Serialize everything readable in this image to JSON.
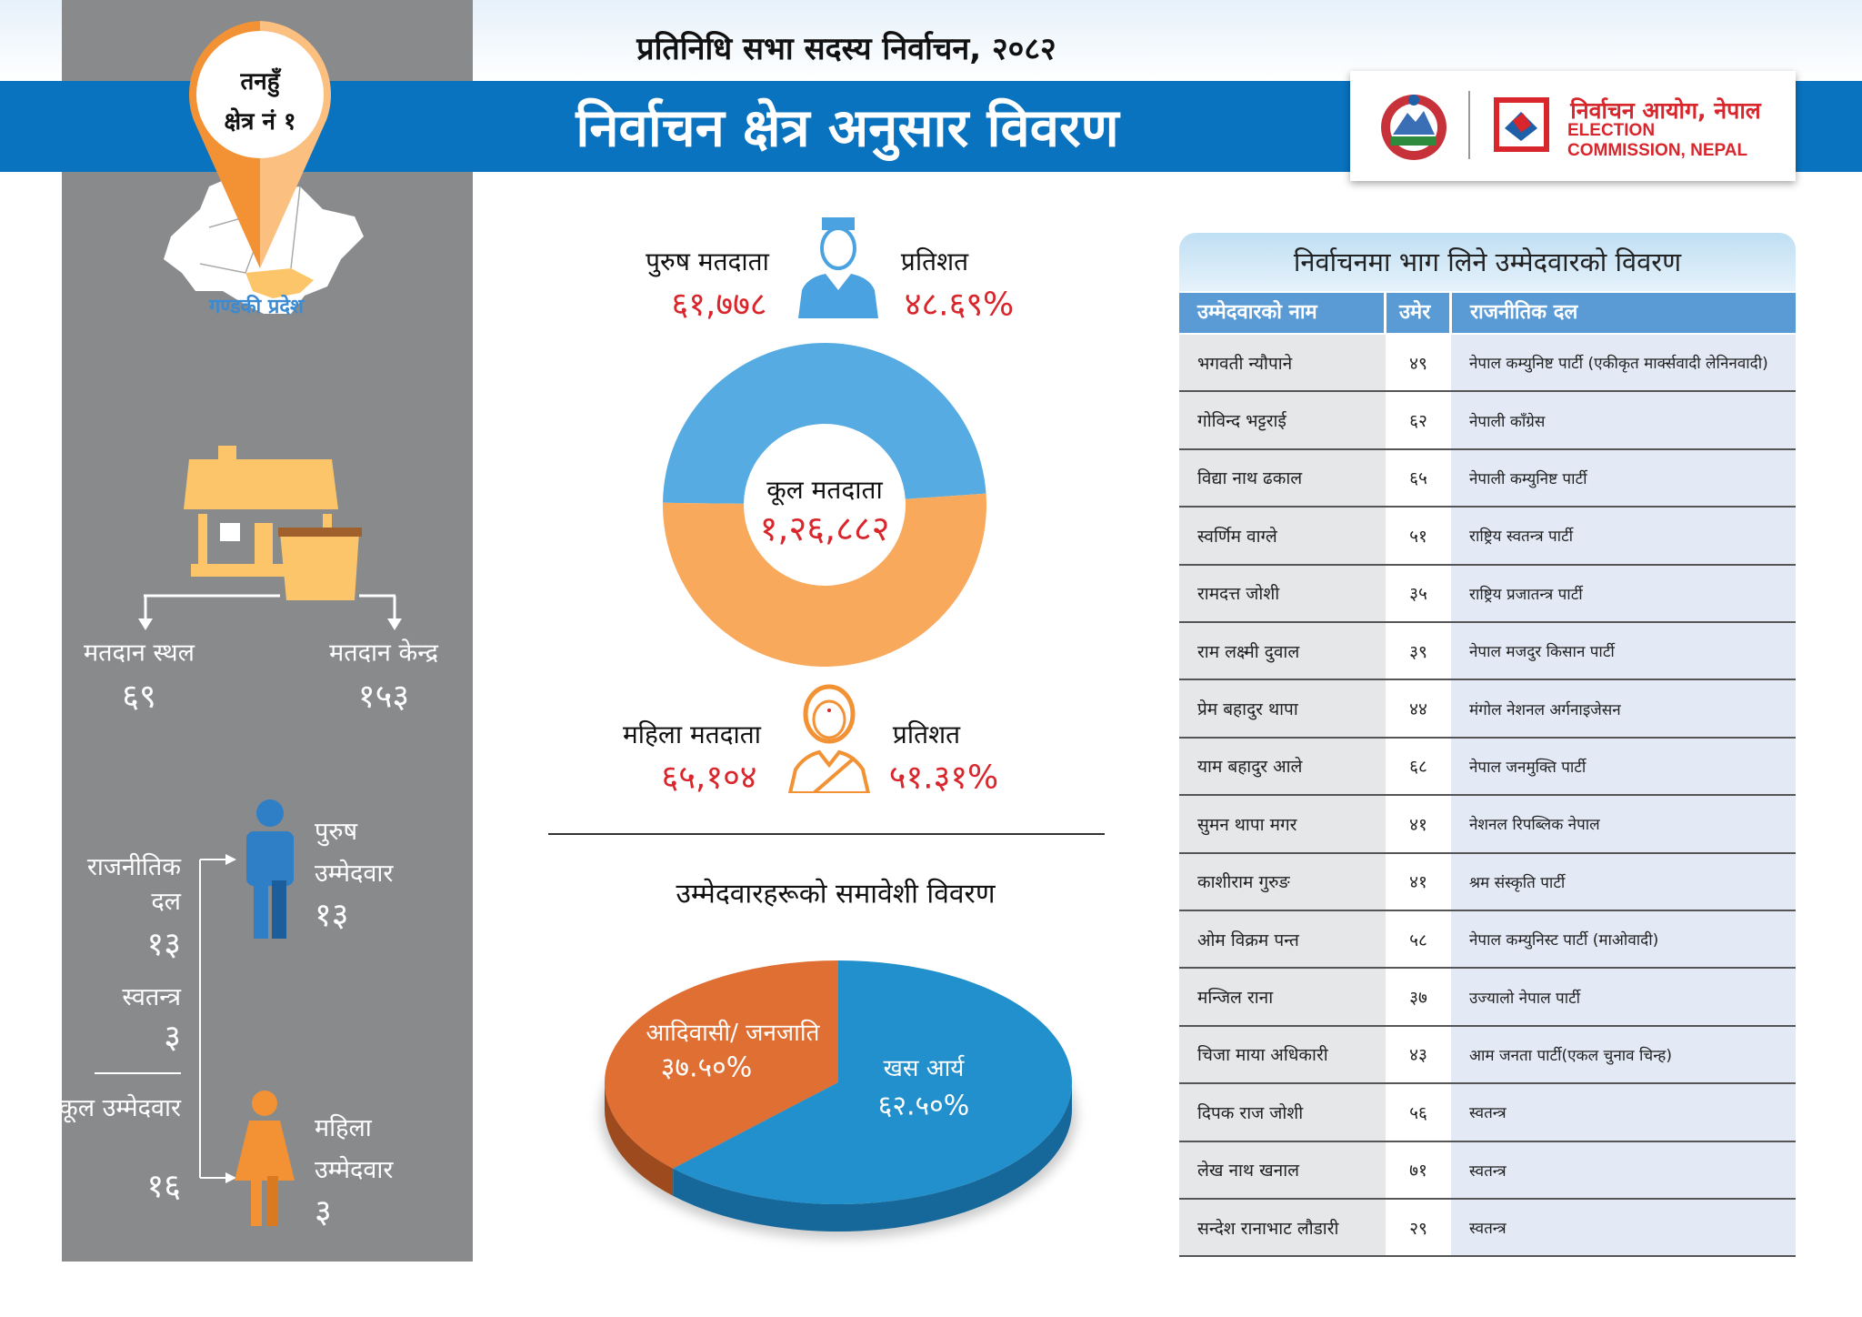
{
  "header": {
    "subtitle": "प्रतिनिधि सभा सदस्य निर्वाचन, २०८२",
    "title": "निर्वाचन क्षेत्र अनुसार विवरण",
    "org_np": "निर्वाचन आयोग, नेपाल",
    "org_en": "ELECTION COMMISSION, NEPAL"
  },
  "location": {
    "district": "तनहुँ",
    "constituency": "क्षेत्र नं १",
    "province": "गण्डकी प्रदेश"
  },
  "polling": {
    "places_label": "मतदान स्थल",
    "places_value": "६९",
    "centers_label": "मतदान केन्द्र",
    "centers_value": "१५३"
  },
  "candidates_summary": {
    "party_label": "राजनीतिक दल",
    "party_value": "१३",
    "independent_label": "स्वतन्त्र",
    "independent_value": "३",
    "total_label": "कूल उम्मेदवार",
    "total_value": "१६",
    "male_label1": "पुरुष",
    "male_label2": "उम्मेदवार",
    "male_value": "१३",
    "female_label1": "महिला",
    "female_label2": "उम्मेदवार",
    "female_value": "३"
  },
  "voters": {
    "male_label": "पुरुष मतदाता",
    "male_value": "६१,७७८",
    "male_pct_label": "प्रतिशत",
    "male_pct": "४८.६९%",
    "female_label": "महिला मतदाता",
    "female_value": "६५,१०४",
    "female_pct_label": "प्रतिशत",
    "female_pct": "५१.३१%",
    "total_label": "कूल मतदाता",
    "total_value": "१,२६,८८२"
  },
  "inclusion_title": "उम्मेदवारहरूको समावेशी विवरण",
  "chart_data": [
    {
      "type": "pie",
      "variant": "donut",
      "series": [
        {
          "name": "पुरुष मतदाता",
          "value": 61778,
          "percent": 48.69,
          "color": "#56ace2"
        },
        {
          "name": "महिला मतदाता",
          "value": 65104,
          "percent": 51.31,
          "color": "#f8a95c"
        }
      ],
      "center_label": "कूल मतदाता",
      "center_value": "१,२६,८८२"
    },
    {
      "type": "pie",
      "variant": "3d",
      "title": "उम्मेदवारहरूको समावेशी विवरण",
      "series": [
        {
          "name": "आदिवासी/ जनजाति",
          "percent": 37.5,
          "label": "३७.५०%",
          "color": "#df6f32"
        },
        {
          "name": "खस आर्य",
          "percent": 62.5,
          "label": "६२.५०%",
          "color": "#2190cc"
        }
      ]
    }
  ],
  "table": {
    "title": "निर्वाचनमा भाग लिने उम्मेदवारको विवरण",
    "columns": [
      "उम्मेदवारको नाम",
      "उमेर",
      "राजनीतिक दल"
    ],
    "rows": [
      [
        "भगवती न्यौपाने",
        "४९",
        "नेपाल कम्युनिष्ट पार्टी (एकीकृत मार्क्सवादी लेनिनवादी)"
      ],
      [
        "गोविन्द भट्टराई",
        "६२",
        "नेपाली काँग्रेस"
      ],
      [
        "विद्या नाथ ढकाल",
        "६५",
        "नेपाली कम्युनिष्ट पार्टी"
      ],
      [
        "स्वर्णिम वाग्ले",
        "५१",
        "राष्ट्रिय स्वतन्त्र पार्टी"
      ],
      [
        "रामदत्त जोशी",
        "३५",
        "राष्ट्रिय प्रजातन्त्र पार्टी"
      ],
      [
        "राम लक्ष्मी दुवाल",
        "३९",
        "नेपाल मजदुर किसान पार्टी"
      ],
      [
        "प्रेम बहादुर थापा",
        "४४",
        "मंगोल नेशनल अर्गनाइजेसन"
      ],
      [
        "याम बहादुर आले",
        "६८",
        "नेपाल जनमुक्ति पार्टी"
      ],
      [
        "सुमन थापा मगर",
        "४१",
        "नेशनल रिपब्लिक नेपाल"
      ],
      [
        "काशीराम गुरुङ",
        "४१",
        "श्रम संस्कृति पार्टी"
      ],
      [
        "ओम विक्रम पन्त",
        "५८",
        "नेपाल कम्युनिस्ट पार्टी (माओवादी)"
      ],
      [
        "मन्जिल राना",
        "३७",
        "उज्यालो नेपाल पार्टी"
      ],
      [
        "चिजा माया अधिकारी",
        "४३",
        "आम जनता पार्टी(एकल चुनाव चिन्ह)"
      ],
      [
        "दिपक राज जोशी",
        "५६",
        "स्वतन्त्र"
      ],
      [
        "लेख नाथ खनाल",
        "७१",
        "स्वतन्त्र"
      ],
      [
        "सन्देश रानाभाट लौडारी",
        "२९",
        "स्वतन्त्र"
      ]
    ]
  },
  "colors": {
    "brand_blue": "#0a73c0",
    "panel_gray": "#898a8c",
    "accent_orange": "#f39234",
    "value_red": "#d8262c"
  }
}
